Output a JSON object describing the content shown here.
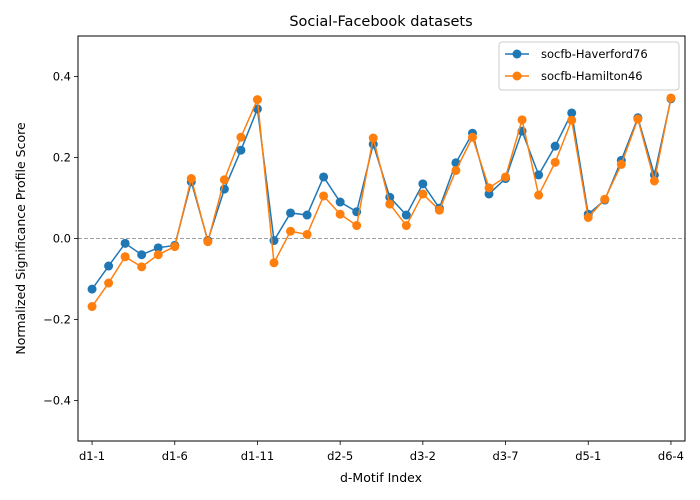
{
  "chart_data": {
    "type": "line",
    "title": "Social-Facebook datasets",
    "xlabel": "d-Motif Index",
    "ylabel": "Normalized Significance Profile Score",
    "ylim": [
      -0.5,
      0.5
    ],
    "yticks": [
      -0.4,
      -0.2,
      0.0,
      0.2,
      0.4
    ],
    "ytick_labels": [
      "−0.4",
      "−0.2",
      "0.0",
      "0.2",
      "0.4"
    ],
    "xtick_positions": [
      1,
      6,
      11,
      16,
      21,
      26,
      31,
      36
    ],
    "xtick_labels": [
      "d1-1",
      "d1-6",
      "d1-11",
      "d2-5",
      "d3-2",
      "d3-7",
      "d5-1",
      "d6-4"
    ],
    "x": [
      1,
      2,
      3,
      4,
      5,
      6,
      7,
      8,
      9,
      10,
      11,
      12,
      13,
      14,
      15,
      16,
      17,
      18,
      19,
      20,
      21,
      22,
      23,
      24,
      25,
      26,
      27,
      28,
      29,
      30,
      31,
      32,
      33,
      34,
      35,
      36
    ],
    "zero_line": true,
    "grid": false,
    "legend_position": "top-right",
    "series": [
      {
        "name": "socfb-Haverford76",
        "color": "#1f77b4",
        "values": [
          -0.125,
          -0.068,
          -0.012,
          -0.04,
          -0.023,
          -0.017,
          0.14,
          -0.005,
          0.122,
          0.218,
          0.32,
          -0.005,
          0.063,
          0.058,
          0.152,
          0.09,
          0.066,
          0.233,
          0.102,
          0.058,
          0.135,
          0.075,
          0.187,
          0.26,
          0.11,
          0.148,
          0.265,
          0.157,
          0.228,
          0.31,
          0.06,
          0.095,
          0.193,
          0.298,
          0.157,
          0.345
        ]
      },
      {
        "name": "socfb-Hamilton46",
        "color": "#ff7f0e",
        "values": [
          -0.168,
          -0.11,
          -0.045,
          -0.07,
          -0.04,
          -0.02,
          0.148,
          -0.008,
          0.145,
          0.25,
          0.343,
          -0.06,
          0.018,
          0.01,
          0.105,
          0.06,
          0.032,
          0.248,
          0.085,
          0.032,
          0.11,
          0.07,
          0.168,
          0.25,
          0.125,
          0.152,
          0.293,
          0.107,
          0.188,
          0.292,
          0.052,
          0.097,
          0.183,
          0.295,
          0.142,
          0.347
        ]
      }
    ]
  }
}
